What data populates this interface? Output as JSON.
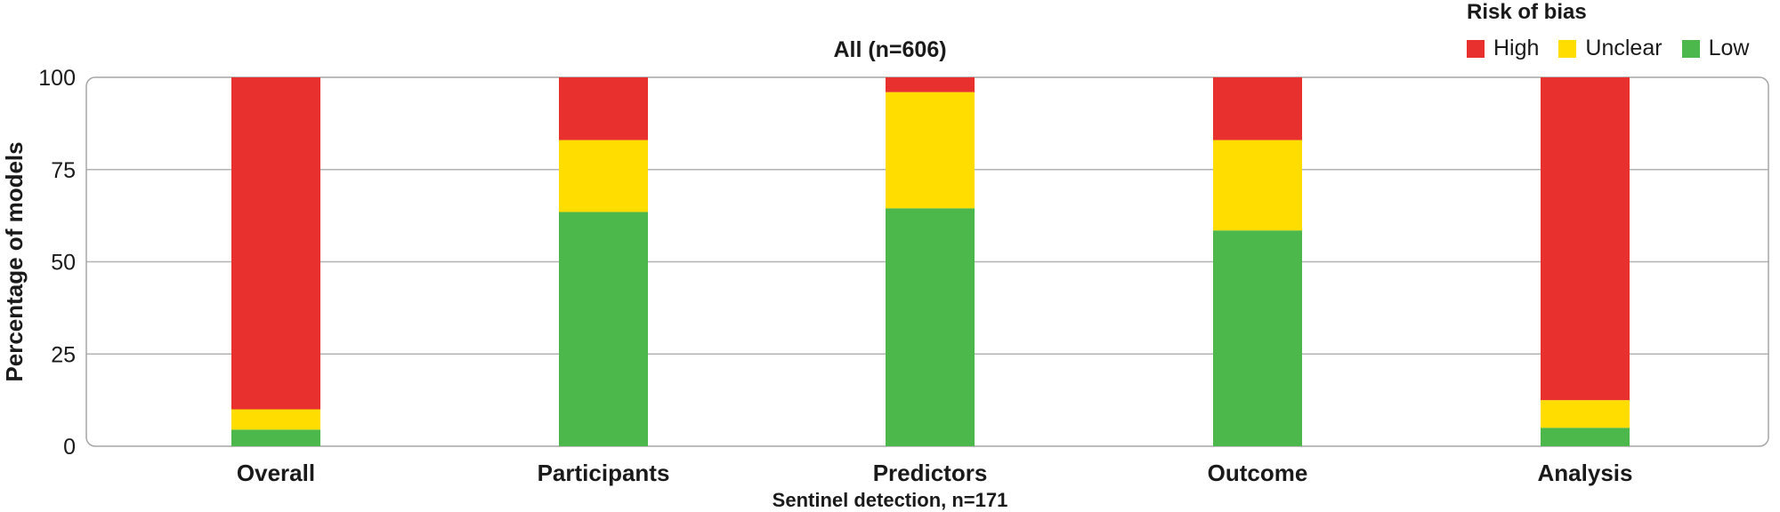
{
  "chart_data": {
    "type": "bar",
    "stacked": true,
    "title": "All (n=606)",
    "ylabel": "Percentage of models",
    "xlabel": "",
    "ylim": [
      0,
      100
    ],
    "yticks": [
      0,
      25,
      50,
      75,
      100
    ],
    "grid": true,
    "categories": [
      "Overall",
      "Participants",
      "Predictors",
      "Outcome",
      "Analysis"
    ],
    "series": [
      {
        "name": "Low",
        "color": "#4cb74a",
        "values": [
          4.5,
          63.5,
          64.5,
          58.5,
          5
        ]
      },
      {
        "name": "Unclear",
        "color": "#ffdd00",
        "values": [
          5.5,
          19.5,
          31.5,
          24.5,
          7.5
        ]
      },
      {
        "name": "High",
        "color": "#e8302e",
        "values": [
          90,
          17,
          4,
          17,
          87.5
        ]
      }
    ],
    "legend": {
      "title": "Risk of bias",
      "placement": "top-right",
      "order": [
        "High",
        "Unclear",
        "Low"
      ]
    },
    "panel_label": "Sentinel detection, n=171"
  }
}
